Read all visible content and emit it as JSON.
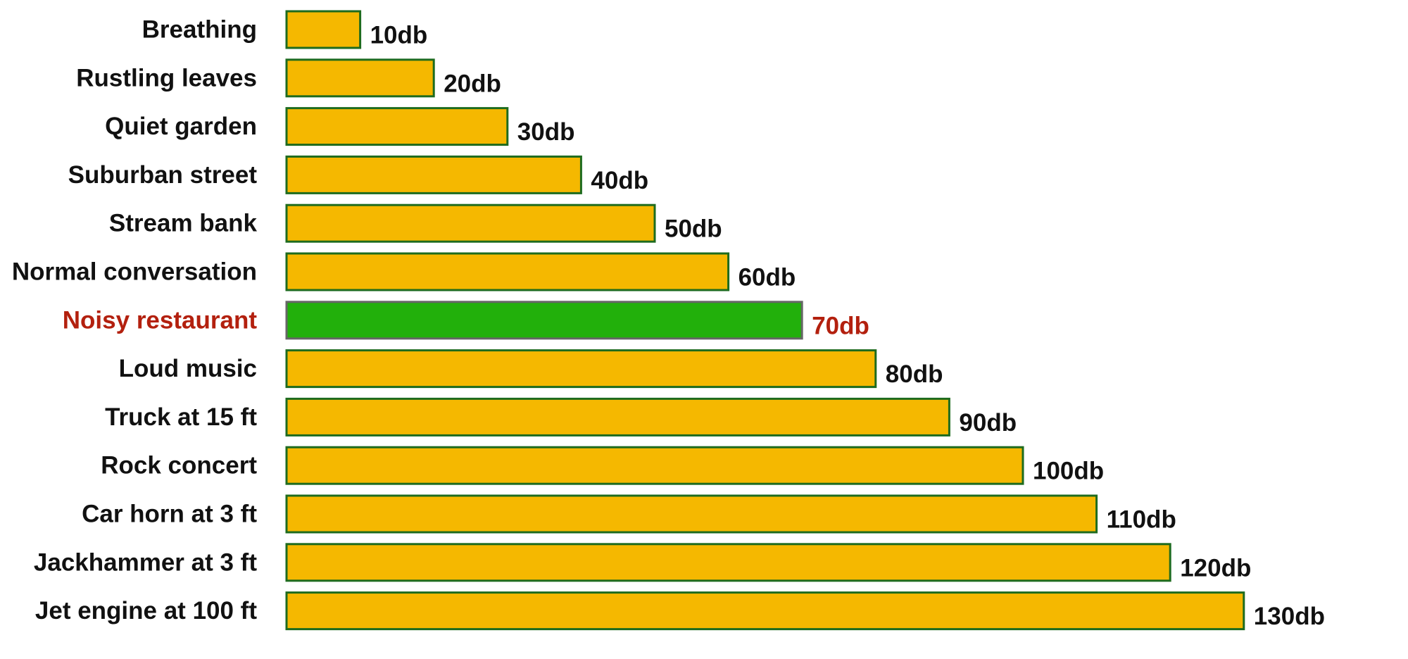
{
  "chart_data": {
    "type": "bar",
    "orientation": "horizontal",
    "title": "",
    "xlabel": "",
    "ylabel": "",
    "xlim": [
      0,
      130
    ],
    "grid": false,
    "legend": "none",
    "categories": [
      "Breathing",
      "Rustling leaves",
      "Quiet garden",
      "Suburban street",
      "Stream bank",
      "Normal conversation",
      "Noisy restaurant",
      "Loud music",
      "Truck at 15 ft",
      "Rock concert",
      "Car horn at 3 ft",
      "Jackhammer at 3 ft",
      "Jet engine at 100 ft"
    ],
    "values": [
      10,
      20,
      30,
      40,
      50,
      60,
      70,
      80,
      90,
      100,
      110,
      120,
      130
    ],
    "data_labels": [
      "10db",
      "20db",
      "30db",
      "40db",
      "50db",
      "60db",
      "70db",
      "80db",
      "90db",
      "100db",
      "110db",
      "120db",
      "130db"
    ],
    "highlight_index": 6,
    "colors": {
      "bar_fill": "#F5B800",
      "bar_stroke": "#1E6B1E",
      "highlight_fill": "#22B00B",
      "highlight_stroke": "#666666",
      "label_text": "#111111",
      "highlight_text": "#B3200E"
    }
  }
}
